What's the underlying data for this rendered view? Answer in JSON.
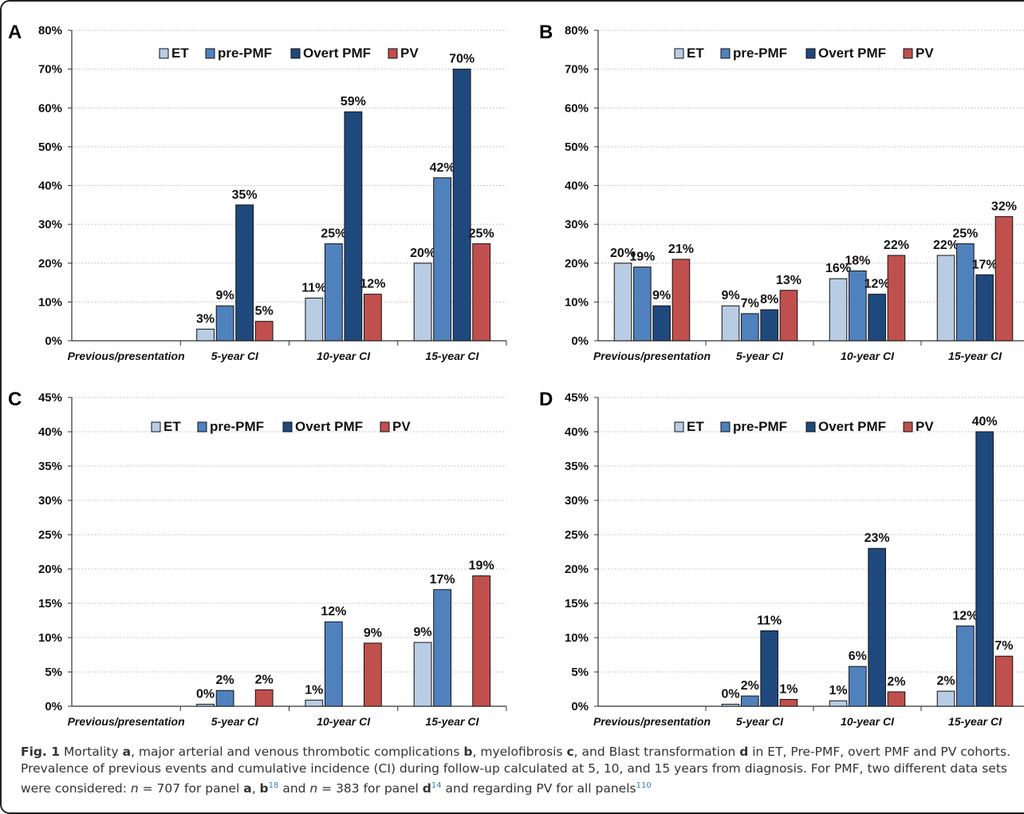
{
  "colors": {
    "ET": "#b8cce4",
    "pre-PMF": "#4f81bd",
    "Overt PMF": "#1f497d",
    "PV": "#c0504d"
  },
  "chart_data": [
    {
      "panel": "A",
      "type": "bar",
      "categories": [
        "Previous/presentation",
        "5-year CI",
        "10-year CI",
        "15-year CI"
      ],
      "series": [
        {
          "name": "ET",
          "values": [
            null,
            3,
            11,
            20
          ],
          "labels": [
            "",
            "3%",
            "11%",
            "20%"
          ]
        },
        {
          "name": "pre-PMF",
          "values": [
            null,
            9,
            25,
            42
          ],
          "labels": [
            "",
            "9%",
            "25%",
            "42%"
          ]
        },
        {
          "name": "Overt PMF",
          "values": [
            null,
            35,
            59,
            70
          ],
          "labels": [
            "",
            "35%",
            "59%",
            "70%"
          ]
        },
        {
          "name": "PV",
          "values": [
            null,
            5,
            12,
            25
          ],
          "labels": [
            "",
            "5%",
            "12%",
            "25%"
          ]
        }
      ],
      "ylim": [
        0,
        80
      ],
      "yticks": [
        "0%",
        "10%",
        "20%",
        "30%",
        "40%",
        "50%",
        "60%",
        "70%",
        "80%"
      ],
      "grid": true,
      "legend": "top"
    },
    {
      "panel": "B",
      "type": "bar",
      "categories": [
        "Previous/presentation",
        "5-year CI",
        "10-year CI",
        "15-year CI"
      ],
      "series": [
        {
          "name": "ET",
          "values": [
            20,
            9,
            16,
            22
          ],
          "labels": [
            "20%",
            "9%",
            "16%",
            "22%"
          ]
        },
        {
          "name": "pre-PMF",
          "values": [
            19,
            7,
            18,
            25
          ],
          "labels": [
            "19%",
            "7%",
            "18%",
            "25%"
          ]
        },
        {
          "name": "Overt PMF",
          "values": [
            9,
            8,
            12,
            17
          ],
          "labels": [
            "9%",
            "8%",
            "12%",
            "17%"
          ]
        },
        {
          "name": "PV",
          "values": [
            21,
            13,
            22,
            32
          ],
          "labels": [
            "21%",
            "13%",
            "22%",
            "32%"
          ]
        }
      ],
      "ylim": [
        0,
        80
      ],
      "yticks": [
        "0%",
        "10%",
        "20%",
        "30%",
        "40%",
        "50%",
        "60%",
        "70%",
        "80%"
      ],
      "grid": true,
      "legend": "top"
    },
    {
      "panel": "C",
      "type": "bar",
      "categories": [
        "Previous/presentation",
        "5-year CI",
        "10-year CI",
        "15-year CI"
      ],
      "series": [
        {
          "name": "ET",
          "values": [
            null,
            0.3,
            0.9,
            9.3
          ],
          "labels": [
            "",
            "0%",
            "1%",
            "9%"
          ]
        },
        {
          "name": "pre-PMF",
          "values": [
            null,
            2.3,
            12.3,
            17
          ],
          "labels": [
            "",
            "2%",
            "12%",
            "17%"
          ]
        },
        {
          "name": "Overt PMF",
          "values": [
            null,
            null,
            null,
            null
          ],
          "labels": [
            "",
            "",
            "",
            ""
          ]
        },
        {
          "name": "PV",
          "values": [
            null,
            2.4,
            9.2,
            19
          ],
          "labels": [
            "",
            "2%",
            "9%",
            "19%"
          ]
        }
      ],
      "ylim": [
        0,
        45
      ],
      "yticks": [
        "0%",
        "5%",
        "10%",
        "15%",
        "20%",
        "25%",
        "30%",
        "35%",
        "40%",
        "45%"
      ],
      "grid": true,
      "legend": "top"
    },
    {
      "panel": "D",
      "type": "bar",
      "categories": [
        "Previous/presentation",
        "5-year CI",
        "10-year CI",
        "15-year CI"
      ],
      "series": [
        {
          "name": "ET",
          "values": [
            null,
            0.3,
            0.8,
            2.2
          ],
          "labels": [
            "",
            "0%",
            "1%",
            "2%"
          ]
        },
        {
          "name": "pre-PMF",
          "values": [
            null,
            1.5,
            5.8,
            11.7
          ],
          "labels": [
            "",
            "2%",
            "6%",
            "12%"
          ]
        },
        {
          "name": "Overt PMF",
          "values": [
            null,
            11,
            23,
            40
          ],
          "labels": [
            "",
            "11%",
            "23%",
            "40%"
          ]
        },
        {
          "name": "PV",
          "values": [
            null,
            1,
            2.1,
            7.3
          ],
          "labels": [
            "",
            "1%",
            "2%",
            "7%"
          ]
        }
      ],
      "ylim": [
        0,
        45
      ],
      "yticks": [
        "0%",
        "5%",
        "10%",
        "15%",
        "20%",
        "25%",
        "30%",
        "35%",
        "40%",
        "45%"
      ],
      "grid": true,
      "legend": "top"
    }
  ],
  "caption": {
    "fig": "Fig. 1",
    "t1": " Mortality ",
    "b1": "a",
    "t2": ", major arterial and venous thrombotic complications ",
    "b2": "b",
    "t3": ", myelofibrosis ",
    "b3": "c",
    "t4": ", and Blast transformation ",
    "b4": "d",
    "t5": " in ET, Pre-PMF, overt PMF and PV cohorts. Prevalence of previous events and cumulative incidence (CI) during follow-up calculated at 5, 10, and 15 years from diagnosis. For PMF, two different data sets were considered: ",
    "n1": "n",
    "t6": " = 707 for panel ",
    "b5": "a",
    "t7": ", ",
    "b6": "b",
    "r1": "18",
    "t8": " and ",
    "n2": "n",
    "t9": " = 383 for panel ",
    "b7": "d",
    "r2": "14",
    "t10": " and regarding PV for all panels",
    "r3": "110"
  }
}
